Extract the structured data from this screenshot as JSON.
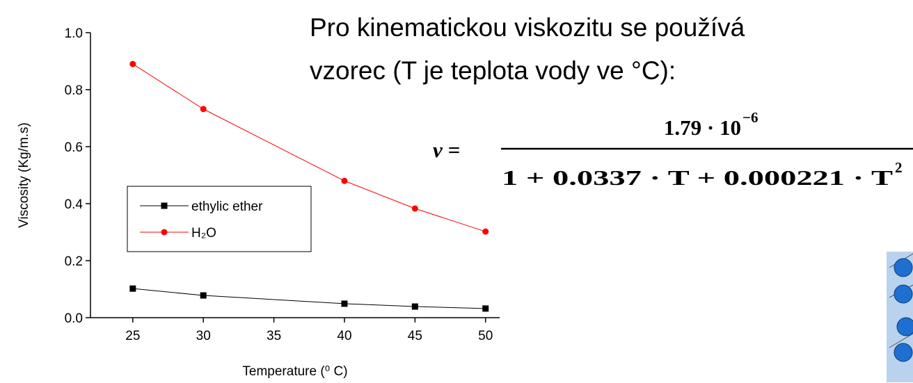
{
  "chart_data": {
    "type": "line",
    "x_label": "Temperature (⁰ C)",
    "y_label": "Viscosity (Kg/m.s)",
    "x": [
      25,
      30,
      40,
      45,
      50
    ],
    "series": [
      {
        "name": "ethylic ether",
        "color": "#000000",
        "marker": "square",
        "values": [
          0.102,
          0.078,
          0.049,
          0.039,
          0.032
        ]
      },
      {
        "name": "H₂O",
        "color": "#ff0000",
        "marker": "circle",
        "values": [
          0.89,
          0.732,
          0.48,
          0.383,
          0.302
        ]
      }
    ],
    "xlim": [
      22,
      51
    ],
    "ylim": [
      0,
      1
    ],
    "xticks": [
      25,
      30,
      35,
      40,
      45,
      50
    ],
    "yticks": [
      {
        "value": 0,
        "label": "0.0"
      },
      0.2,
      0.4,
      0.6,
      0.8,
      {
        "value": 1,
        "label": "1.0"
      }
    ],
    "legend": "middle-left",
    "grid": false
  },
  "slide": {
    "text_lines": [
      "Pro kinematickou viskozitu se používá",
      "vzorec (T je teplota vody ve °C):"
    ],
    "formula": {
      "lhs": "ν =",
      "numerator": "1.79 · 10",
      "numerator_exponent": "−6",
      "denominator": "1 + 0.0337 · T + 0.000221 · T",
      "denominator_exponent": "2"
    }
  }
}
